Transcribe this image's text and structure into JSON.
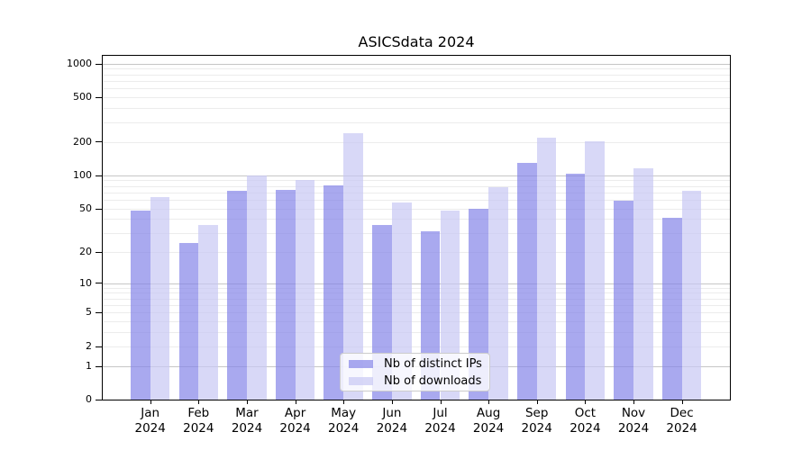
{
  "chart_data": {
    "type": "bar",
    "title": "ASICSdata 2024",
    "categories": [
      "Jan",
      "Feb",
      "Mar",
      "Apr",
      "May",
      "Jun",
      "Jul",
      "Aug",
      "Sep",
      "Oct",
      "Nov",
      "Dec"
    ],
    "category_sublabel": "2024",
    "series": [
      {
        "name": "Nb of distinct IPs",
        "color": "rgba(132,132,232,0.7)",
        "values": [
          48,
          24,
          72,
          74,
          81,
          35,
          31,
          50,
          130,
          103,
          59,
          41
        ]
      },
      {
        "name": "Nb of downloads",
        "color": "rgba(199,199,243,0.7)",
        "values": [
          64,
          35,
          100,
          91,
          237,
          57,
          48,
          78,
          219,
          203,
          116,
          73
        ]
      }
    ],
    "xlabel": "",
    "ylabel": "",
    "y_axis": {
      "scale": "log10(1+value)",
      "ticks": [
        0,
        1,
        2,
        5,
        10,
        20,
        50,
        100,
        200,
        500,
        1000
      ],
      "major_gridlines": [
        1,
        10,
        100,
        1000
      ],
      "ylim": [
        0,
        1186
      ]
    },
    "grid": true,
    "legend_position": "lower-center",
    "colors": {
      "bar_distinct_ips": "rgba(132,132,232,0.7)",
      "bar_downloads": "rgba(199,199,243,0.7)",
      "gridline_major": "#c6c6c6",
      "gridline_minor": "#ececec",
      "spine": "#000000"
    }
  }
}
